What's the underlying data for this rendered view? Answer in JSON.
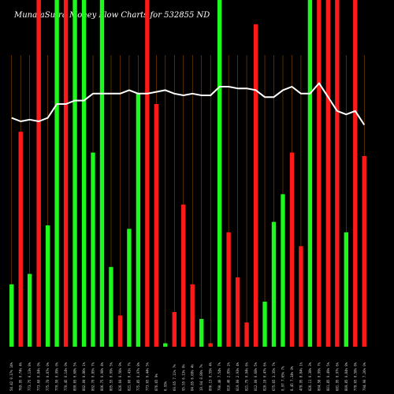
{
  "chart_data": {
    "type": "bar",
    "title": "MunafaSutra Money Flow Charts for 532855 ND",
    "colors": {
      "up": "#1df81d",
      "down": "#ff1a1a",
      "line": "#ffffff",
      "grid": "#8a4a00",
      "background": "#000000"
    },
    "ylim": [
      0,
      100
    ],
    "categories": [
      "54.42 0.17% 14%",
      "769.95 0.74% 4%",
      "773.75 0.13% 8%",
      "773.60 0.84% 0%",
      "775.70 0.87% 0%",
      "770.50 0.99% 0%",
      "770.45 0.14% 0%",
      "800.65 0.68% 5%",
      "802.00 0.86% 1%",
      "802.70 0.85% 7%",
      "806.75 0.98% 4%",
      "805.55 0.09% 5%",
      "826.60 0.56% 9%",
      "821.60 0.41% 7%",
      "775.85 0.97% 8%",
      "773.65 0.44% 5%",
      "876.65 9%",
      "6.93%",
      "69.65 7.11% 7%",
      "95.55 6.13% 0%",
      "84.85 6.68% 4%",
      "19.94 0.86% 7%",
      "806.13 0.59% 4%",
      "790.40 7.54% 7%",
      "810.40 2.85% 2%",
      "819.00 2.93% 4%",
      "821.75 0.94% 6%",
      "812.00 0.68% 5%",
      "820.10 0.47% 6%",
      "675.65 3.35% 7%",
      "0.97 7.65% 7%",
      "8.45 7.34% 0%",
      "478.95 8.84% 1%",
      "826.11 0.38% 3%",
      "804.58 0.99% 7%",
      "801.85 0.49% 5%",
      "681.95 0.97% 6%",
      "809.85 0.84% 8%",
      "778.65 0.58% 8%",
      "794.90 7.26% 0%"
    ],
    "series": [
      {
        "values": [
          18,
          62,
          21,
          100,
          35,
          100,
          100,
          100,
          100,
          56,
          100,
          23,
          9,
          34,
          73,
          100,
          70,
          1,
          10,
          41,
          18,
          8,
          1,
          100,
          33,
          20,
          7,
          93,
          13,
          36,
          44,
          56,
          29,
          100,
          100,
          100,
          100,
          33,
          100,
          55
        ],
        "direction": [
          "up",
          "down",
          "up",
          "down",
          "up",
          "up",
          "down",
          "up",
          "up",
          "up",
          "up",
          "up",
          "down",
          "up",
          "up",
          "down",
          "down",
          "up",
          "down",
          "down",
          "down",
          "up",
          "down",
          "up",
          "down",
          "down",
          "down",
          "down",
          "up",
          "up",
          "up",
          "down",
          "down",
          "up",
          "down",
          "down",
          "down",
          "up",
          "down",
          "down"
        ]
      },
      {
        "type": "line",
        "values": [
          66,
          65,
          65.5,
          65,
          66,
          70,
          70,
          71,
          71,
          73,
          73,
          73,
          73,
          74,
          73,
          73,
          73.5,
          74,
          73,
          72.5,
          73,
          72.5,
          72.5,
          75,
          75,
          74.5,
          74.5,
          74,
          72,
          72,
          74,
          75,
          73,
          73,
          76,
          72,
          68,
          67,
          68,
          64
        ]
      }
    ]
  }
}
